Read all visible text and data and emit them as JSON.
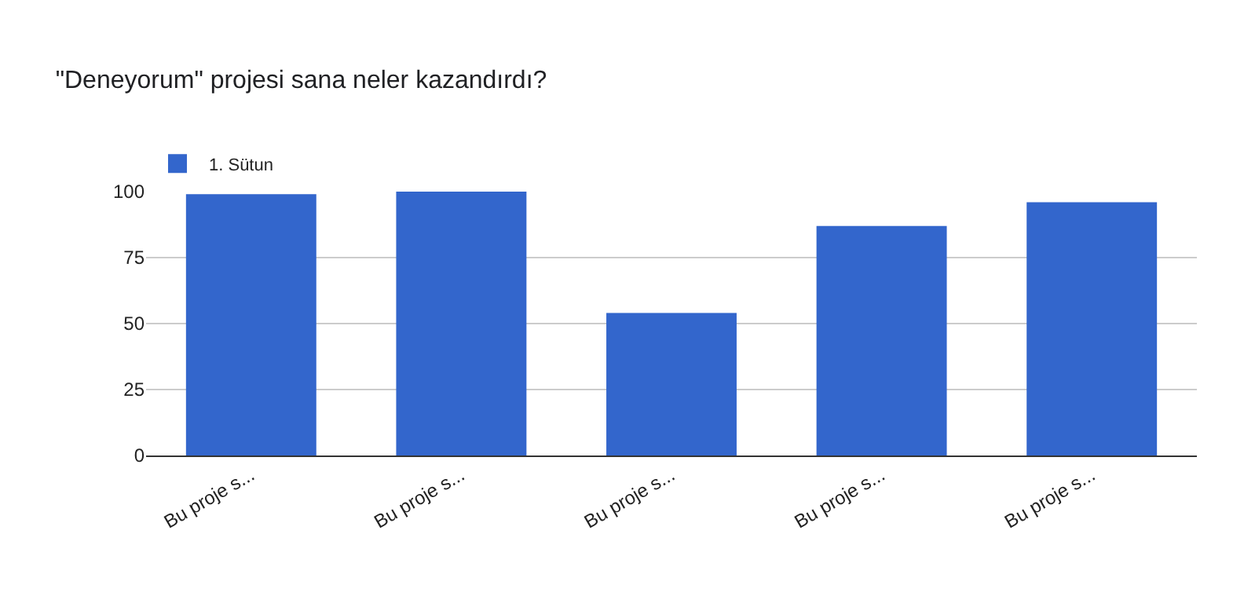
{
  "chart_data": {
    "type": "bar",
    "title": "\"Deneyorum\" projesi sana neler kazandırdı?",
    "categories": [
      "Bu proje s...",
      "Bu proje s...",
      "Bu proje s...",
      "Bu proje s...",
      "Bu proje s..."
    ],
    "series": [
      {
        "name": "1. Sütun",
        "color": "#3366cc",
        "values": [
          99,
          100,
          54,
          87,
          96
        ]
      }
    ],
    "ylim": [
      0,
      100
    ],
    "yticks": [
      0,
      25,
      50,
      75,
      100
    ],
    "grid": "y",
    "legend": "top left"
  }
}
